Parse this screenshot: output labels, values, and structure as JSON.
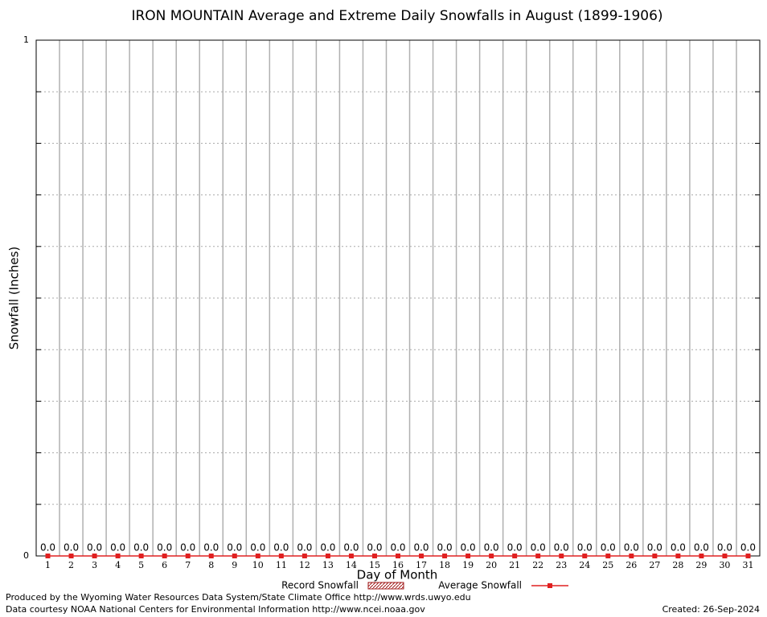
{
  "chart_data": {
    "type": "bar_line",
    "title": "IRON MOUNTAIN Average and Extreme Daily Snowfalls in August (1899-1906)",
    "x_label": "Day of Month",
    "y_label": "Snowfall (Inches)",
    "categories": [
      "1",
      "2",
      "3",
      "4",
      "5",
      "6",
      "7",
      "8",
      "9",
      "10",
      "11",
      "12",
      "13",
      "14",
      "15",
      "16",
      "17",
      "18",
      "19",
      "20",
      "21",
      "22",
      "23",
      "24",
      "25",
      "26",
      "27",
      "28",
      "29",
      "30",
      "31"
    ],
    "series": [
      {
        "name": "Record Snowfall",
        "color": "#a01818",
        "kind": "bar",
        "values": [
          0,
          0,
          0,
          0,
          0,
          0,
          0,
          0,
          0,
          0,
          0,
          0,
          0,
          0,
          0,
          0,
          0,
          0,
          0,
          0,
          0,
          0,
          0,
          0,
          0,
          0,
          0,
          0,
          0,
          0,
          0
        ],
        "value_labels": [
          "0.0",
          "0.0",
          "0.0",
          "0.0",
          "0.0",
          "0.0",
          "0.0",
          "0.0",
          "0.0",
          "0.0",
          "0.0",
          "0.0",
          "0.0",
          "0.0",
          "0.0",
          "0.0",
          "0.0",
          "0.0",
          "0.0",
          "0.0",
          "0.0",
          "0.0",
          "0.0",
          "0.0",
          "0.0",
          "0.0",
          "0.0",
          "0.0",
          "0.0",
          "0.0",
          "0.0"
        ]
      },
      {
        "name": "Average Snowfall",
        "color": "#e02020",
        "kind": "line",
        "values": [
          0,
          0,
          0,
          0,
          0,
          0,
          0,
          0,
          0,
          0,
          0,
          0,
          0,
          0,
          0,
          0,
          0,
          0,
          0,
          0,
          0,
          0,
          0,
          0,
          0,
          0,
          0,
          0,
          0,
          0,
          0
        ]
      }
    ],
    "ylim": [
      0,
      1
    ],
    "yticks": [
      0,
      1
    ],
    "ygrid": [
      0.1,
      0.2,
      0.3,
      0.4,
      0.5,
      0.6,
      0.7,
      0.8,
      0.9
    ],
    "grid": true,
    "footer": {
      "credit": "Produced by the Wyoming Water Resources Data System/State Climate Office http://www.wrds.uwyo.edu",
      "source": "Data courtesy NOAA National Centers for Environmental Information http://www.ncei.noaa.gov",
      "created": "Created: 26-Sep-2024"
    }
  }
}
